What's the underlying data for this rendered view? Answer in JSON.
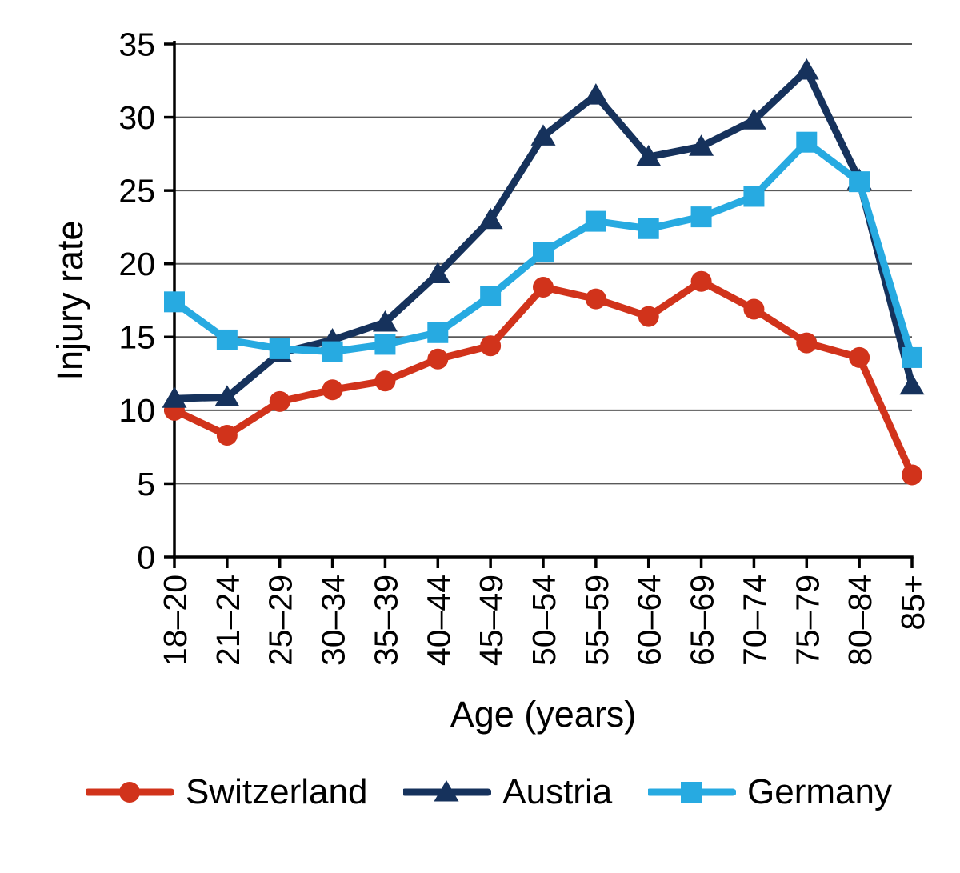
{
  "chart_data": {
    "type": "line",
    "title": "",
    "xlabel": "Age (years)",
    "ylabel": "Injury rate",
    "ylim": [
      0,
      35
    ],
    "yticks": [
      0,
      5,
      10,
      15,
      20,
      25,
      30,
      35
    ],
    "grid": true,
    "gridline_color": "#595959",
    "axis_color": "#000000",
    "legend_position": "bottom",
    "categories": [
      "18–20",
      "21–24",
      "25–29",
      "30–34",
      "35–39",
      "40–44",
      "45–49",
      "50–54",
      "55–59",
      "60–64",
      "65–69",
      "70–74",
      "75–79",
      "80–84",
      "85+"
    ],
    "series": [
      {
        "name": "Switzerland",
        "color": "#D1331B",
        "marker": "circle",
        "values": [
          10.0,
          8.3,
          10.6,
          11.4,
          12.0,
          13.5,
          14.4,
          18.4,
          17.6,
          16.4,
          18.8,
          16.9,
          14.6,
          13.6,
          5.6
        ]
      },
      {
        "name": "Austria",
        "color": "#16325C",
        "marker": "triangle",
        "values": [
          10.8,
          10.9,
          13.9,
          14.8,
          16.0,
          19.3,
          23.0,
          28.7,
          31.5,
          27.3,
          28.0,
          29.8,
          33.2,
          25.7,
          11.7
        ]
      },
      {
        "name": "Germany",
        "color": "#27AAE1",
        "marker": "square",
        "values": [
          17.4,
          14.8,
          14.2,
          14.0,
          14.5,
          15.3,
          17.8,
          20.8,
          22.9,
          22.4,
          23.2,
          24.6,
          28.3,
          25.6,
          13.6
        ]
      }
    ]
  }
}
